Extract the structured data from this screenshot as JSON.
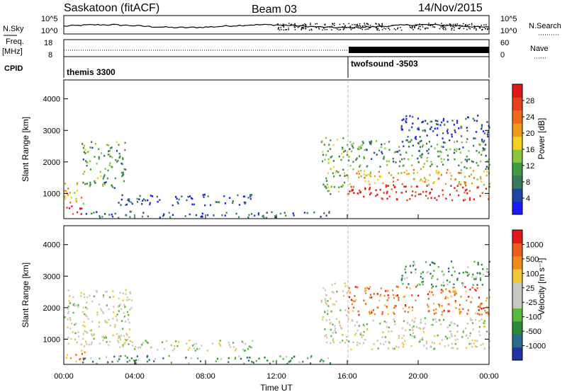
{
  "header": {
    "station": "Saskatoon (fitACF)",
    "beam": "Beam 03",
    "date": "14/Nov/2015"
  },
  "side_labels": {
    "nsky": "N.Sky",
    "nsearch": "N.Search",
    "freq_top": "Freq.",
    "freq_unit": "[MHz]",
    "nave": "Nave",
    "cpid": "CPID"
  },
  "strip_axes": {
    "noise_left_ticks": [
      "10^5",
      "10^0"
    ],
    "noise_right_ticks": [
      "10^5",
      "10^0"
    ],
    "freq_left_ticks": [
      "18",
      "8"
    ],
    "nave_right_ticks": [
      "60",
      "0"
    ]
  },
  "cpid": {
    "segments": [
      {
        "label": "themis 3300",
        "start_hour": 0
      },
      {
        "label": "twofsound -3503",
        "start_hour": 16
      }
    ]
  },
  "x_axis": {
    "title": "Time UT",
    "ticks": [
      "00:00",
      "04:00",
      "08:00",
      "12:00",
      "16:00",
      "20:00",
      "00:00"
    ]
  },
  "chart_data": [
    {
      "type": "heatmap",
      "panel": "power",
      "ylabel": "Slant Range [km]",
      "yticks": [
        "1000",
        "2000",
        "3000",
        "4000"
      ],
      "ylim": [
        200,
        4600
      ],
      "xlim": [
        0,
        24
      ],
      "colorbar": {
        "label": "Power [dB]",
        "ticks": [
          "4",
          "8",
          "12",
          "16",
          "20",
          "24",
          "28"
        ],
        "colors": [
          "#1a1aff",
          "#2244aa",
          "#3a7a5a",
          "#3f9a40",
          "#8cc63f",
          "#f2d21c",
          "#f29a1c",
          "#f06a1c",
          "#e8401c",
          "#e01818"
        ]
      },
      "regions": [
        {
          "t0": 0.0,
          "t1": 1.0,
          "r0": 300,
          "r1": 650,
          "level": 0.95
        },
        {
          "t0": 0.0,
          "t1": 1.2,
          "r0": 700,
          "r1": 1400,
          "level": 0.6
        },
        {
          "t0": 1.0,
          "t1": 3.5,
          "r0": 1200,
          "r1": 2700,
          "level": 0.35
        },
        {
          "t0": 3.0,
          "t1": 10.8,
          "r0": 650,
          "r1": 1000,
          "level": 0.15
        },
        {
          "t0": 1.0,
          "t1": 15.0,
          "r0": 250,
          "r1": 450,
          "level": 0.2
        },
        {
          "t0": 14.5,
          "t1": 16.0,
          "r0": 1000,
          "r1": 2800,
          "level": 0.4
        },
        {
          "t0": 16.0,
          "t1": 24.0,
          "r0": 800,
          "r1": 1300,
          "level": 0.92
        },
        {
          "t0": 16.0,
          "t1": 24.0,
          "r0": 1300,
          "r1": 1800,
          "level": 0.6
        },
        {
          "t0": 16.0,
          "t1": 24.0,
          "r0": 1800,
          "r1": 2700,
          "level": 0.3
        },
        {
          "t0": 19.0,
          "t1": 24.0,
          "r0": 2700,
          "r1": 3500,
          "level": 0.15
        }
      ]
    },
    {
      "type": "heatmap",
      "panel": "velocity",
      "ylabel": "Slant Range [km]",
      "yticks": [
        "1000",
        "2000",
        "3000",
        "4000"
      ],
      "ylim": [
        200,
        4600
      ],
      "xlim": [
        0,
        24
      ],
      "colorbar": {
        "label": "Velocity [m s⁻¹]",
        "ticks": [
          "1000",
          "500",
          "100",
          "25",
          "-25",
          "-100",
          "-500",
          "-1000"
        ],
        "colors": [
          "#2233aa",
          "#2a6a8a",
          "#2a8a3a",
          "#5ab83a",
          "#c8c8c0",
          "#c8c8c0",
          "#f0c83a",
          "#f08a1c",
          "#f05a1c",
          "#e01818"
        ]
      },
      "regions": [
        {
          "t0": 0.0,
          "t1": 1.2,
          "r0": 300,
          "r1": 700,
          "level": 0.75
        },
        {
          "t0": 0.0,
          "t1": 3.8,
          "r0": 800,
          "r1": 2600,
          "level": 0.5
        },
        {
          "t0": 3.0,
          "t1": 10.8,
          "r0": 650,
          "r1": 1000,
          "level": 0.5
        },
        {
          "t0": 1.0,
          "t1": 15.0,
          "r0": 250,
          "r1": 500,
          "level": 0.3
        },
        {
          "t0": 14.5,
          "t1": 16.0,
          "r0": 900,
          "r1": 2800,
          "level": 0.5
        },
        {
          "t0": 16.0,
          "t1": 24.0,
          "r0": 700,
          "r1": 1700,
          "level": 0.5
        },
        {
          "t0": 16.0,
          "t1": 24.0,
          "r0": 1800,
          "r1": 2700,
          "level": 0.8
        },
        {
          "t0": 19.0,
          "t1": 24.0,
          "r0": 2700,
          "r1": 3500,
          "level": 0.3
        }
      ]
    }
  ]
}
